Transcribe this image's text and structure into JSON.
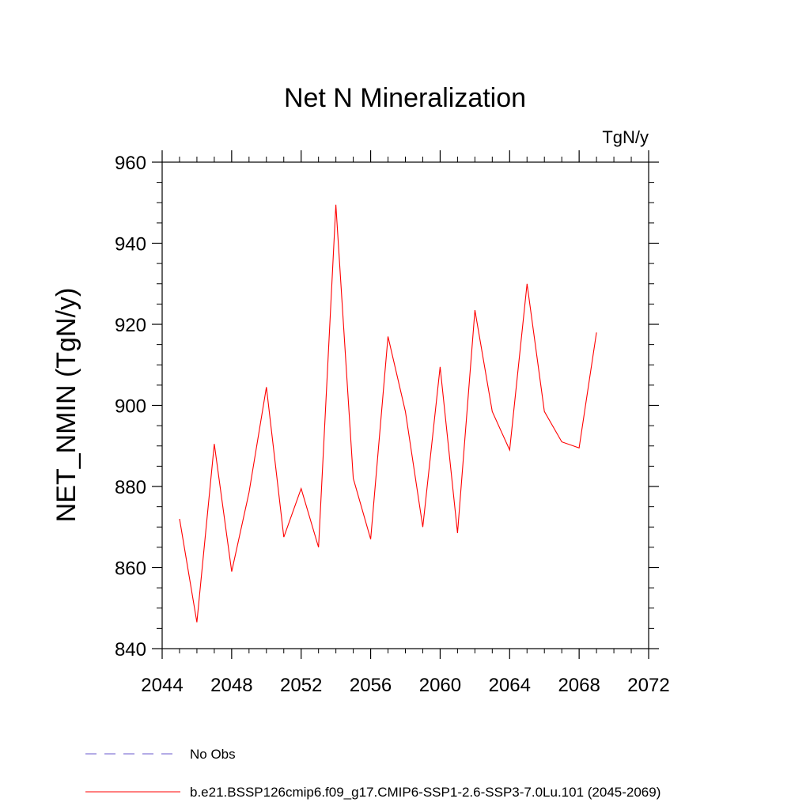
{
  "chart_data": {
    "type": "line",
    "title": "Net N Mineralization",
    "units_label": "TgN/y",
    "xlabel": "",
    "ylabel": "NET_NMIN  (TgN/y)",
    "xlim": [
      2044,
      2072
    ],
    "ylim": [
      840,
      960
    ],
    "xticks": [
      2044,
      2048,
      2052,
      2056,
      2060,
      2064,
      2068,
      2072
    ],
    "yticks": [
      840,
      860,
      880,
      900,
      920,
      940,
      960
    ],
    "grid": false,
    "legend_position": "bottom",
    "series": [
      {
        "name": "b.e21.BSSP126cmip6.f09_g17.CMIP6-SSP1-2.6-SSP3-7.0Lu.101 (2045-2069)",
        "color": "#ff0000",
        "style": "solid",
        "x": [
          2045,
          2046,
          2047,
          2048,
          2049,
          2050,
          2051,
          2052,
          2053,
          2054,
          2055,
          2056,
          2057,
          2058,
          2059,
          2060,
          2061,
          2062,
          2063,
          2064,
          2065,
          2066,
          2067,
          2068,
          2069
        ],
        "values": [
          872,
          846.5,
          890.5,
          859,
          878.5,
          904.5,
          867.5,
          879.5,
          865,
          949.5,
          882,
          867,
          917,
          898.5,
          870,
          909.5,
          868.5,
          923.5,
          898.5,
          889,
          930,
          898.5,
          891,
          889.5,
          918
        ]
      },
      {
        "name": "No Obs",
        "color": "#6a5acd",
        "style": "dashed",
        "x": [],
        "values": []
      }
    ]
  }
}
